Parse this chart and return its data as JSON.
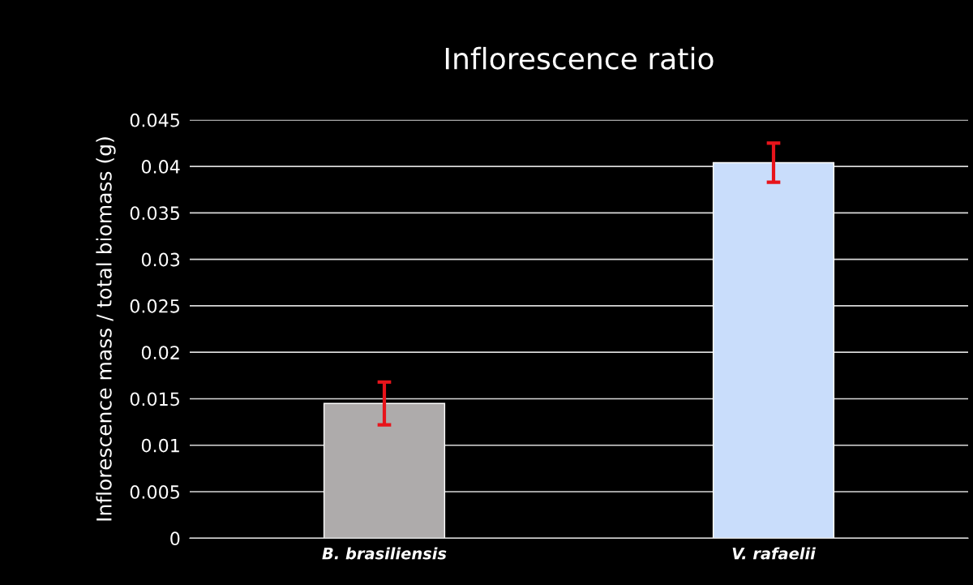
{
  "chart_data": {
    "type": "bar",
    "title": "Inflorescence ratio",
    "ylabel": "Inflorescence mass / total biomass (g)",
    "categories": [
      "B. brasiliensis",
      "V. rafaelii"
    ],
    "values": [
      0.0145,
      0.0404
    ],
    "colors": [
      "#aeabab",
      "#c9ddfb"
    ],
    "errors": [
      0.0023,
      0.0021
    ],
    "ylim": [
      0,
      0.045
    ],
    "yticks": [
      0,
      0.005,
      0.01,
      0.015,
      0.02,
      0.025,
      0.03,
      0.035,
      0.04,
      0.045
    ],
    "grid": "y"
  }
}
